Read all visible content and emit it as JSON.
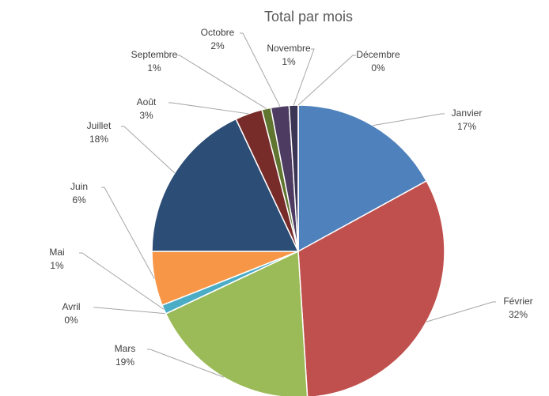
{
  "chart_data": {
    "type": "pie",
    "title": "Total par mois",
    "categories": [
      "Janvier",
      "Février",
      "Mars",
      "Avril",
      "Mai",
      "Juin",
      "Juillet",
      "Août",
      "Septembre",
      "Octobre",
      "Novembre",
      "Décembre"
    ],
    "values": [
      17,
      32,
      19,
      0,
      1,
      6,
      18,
      3,
      1,
      2,
      1,
      0
    ],
    "value_labels": [
      "17%",
      "32%",
      "19%",
      "0%",
      "1%",
      "6%",
      "18%",
      "3%",
      "1%",
      "2%",
      "1%",
      "0%"
    ],
    "colors": [
      "#4f81bd",
      "#c0504d",
      "#9bbb59",
      "#8064a2",
      "#4bacc6",
      "#f79646",
      "#2c4d75",
      "#772c2a",
      "#5f7530",
      "#4d3b62",
      "#3b3656",
      "#276a7c"
    ]
  }
}
